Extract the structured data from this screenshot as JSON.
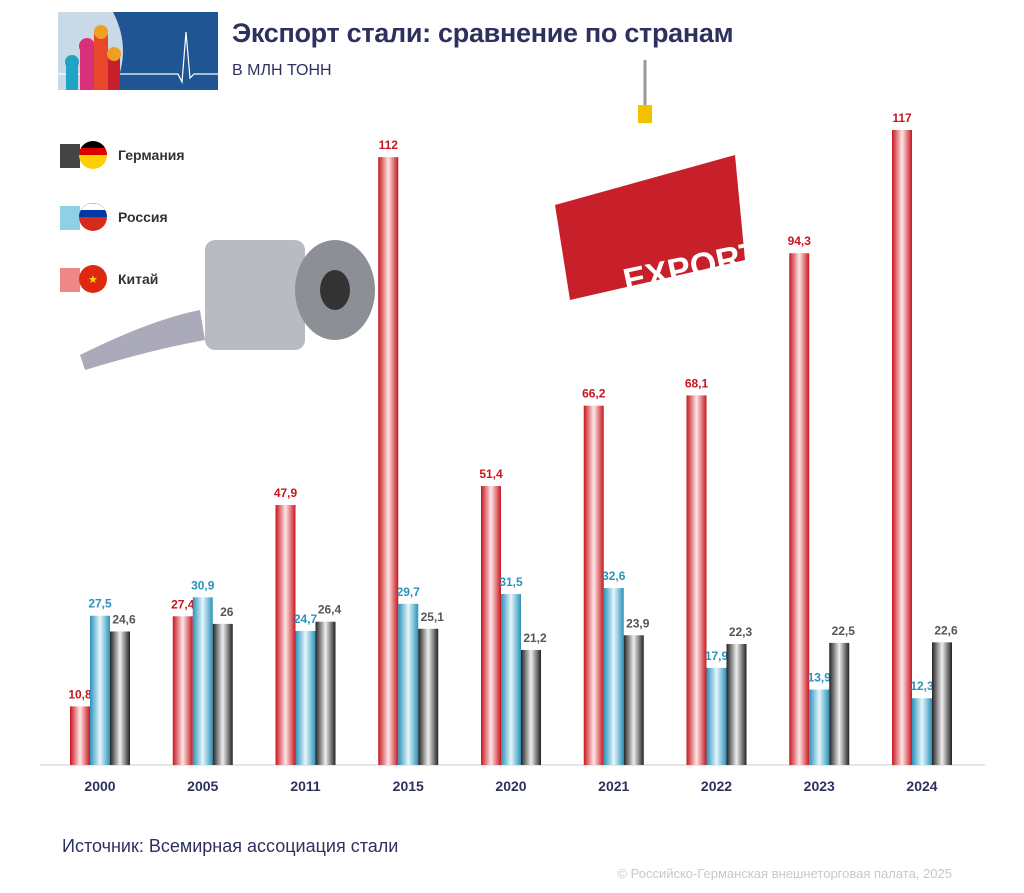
{
  "header": {
    "title": "Экспорт стали: сравнение по странам",
    "subtitle": "В МЛН ТОНН"
  },
  "legend": [
    {
      "label": "Германия",
      "color": "#333333",
      "flag": "germany-flag-icon"
    },
    {
      "label": "Россия",
      "color": "#4aa8c8",
      "flag": "russia-flag-icon"
    },
    {
      "label": "Китай",
      "color": "#d42a30",
      "flag": "china-flag-icon"
    }
  ],
  "illustration": {
    "container_text": "EXPORT"
  },
  "chart_data": {
    "type": "bar",
    "title": "Экспорт стали: сравнение по странам",
    "ylabel": "В МЛН ТОНН",
    "ylim": [
      0,
      117
    ],
    "grid": false,
    "legend_placement": "top-left",
    "categories": [
      "2000",
      "2005",
      "2011",
      "2015",
      "2020",
      "2021",
      "2022",
      "2023",
      "2024"
    ],
    "series": [
      {
        "name": "Китай",
        "color": "#d42a30",
        "values": [
          10.8,
          27.4,
          47.9,
          112,
          51.4,
          66.2,
          68.1,
          94.3,
          117
        ],
        "labels": [
          "10,8",
          "27,4",
          "47,9",
          "112",
          "51,4",
          "66,2",
          "68,1",
          "94,3",
          "117"
        ]
      },
      {
        "name": "Россия",
        "color": "#3a9ec4",
        "values": [
          27.5,
          30.9,
          24.7,
          29.7,
          31.5,
          32.6,
          17.9,
          13.9,
          12.3
        ],
        "labels": [
          "27,5",
          "30,9",
          "24,7",
          "29,7",
          "31,5",
          "32,6",
          "17,9",
          "13,9",
          "12,3"
        ]
      },
      {
        "name": "Германия",
        "color": "#555555",
        "values": [
          24.6,
          26,
          26.4,
          25.1,
          21.2,
          23.9,
          22.3,
          22.5,
          22.6
        ],
        "labels": [
          "24,6",
          "26",
          "26,4",
          "25,1",
          "21,2",
          "23,9",
          "22,3",
          "22,5",
          "22,6"
        ]
      }
    ]
  },
  "footer": {
    "source": "Источник: Всемирная ассоциация стали",
    "copyright": "© Российско-Германская внешнеторговая палата, 2025"
  }
}
